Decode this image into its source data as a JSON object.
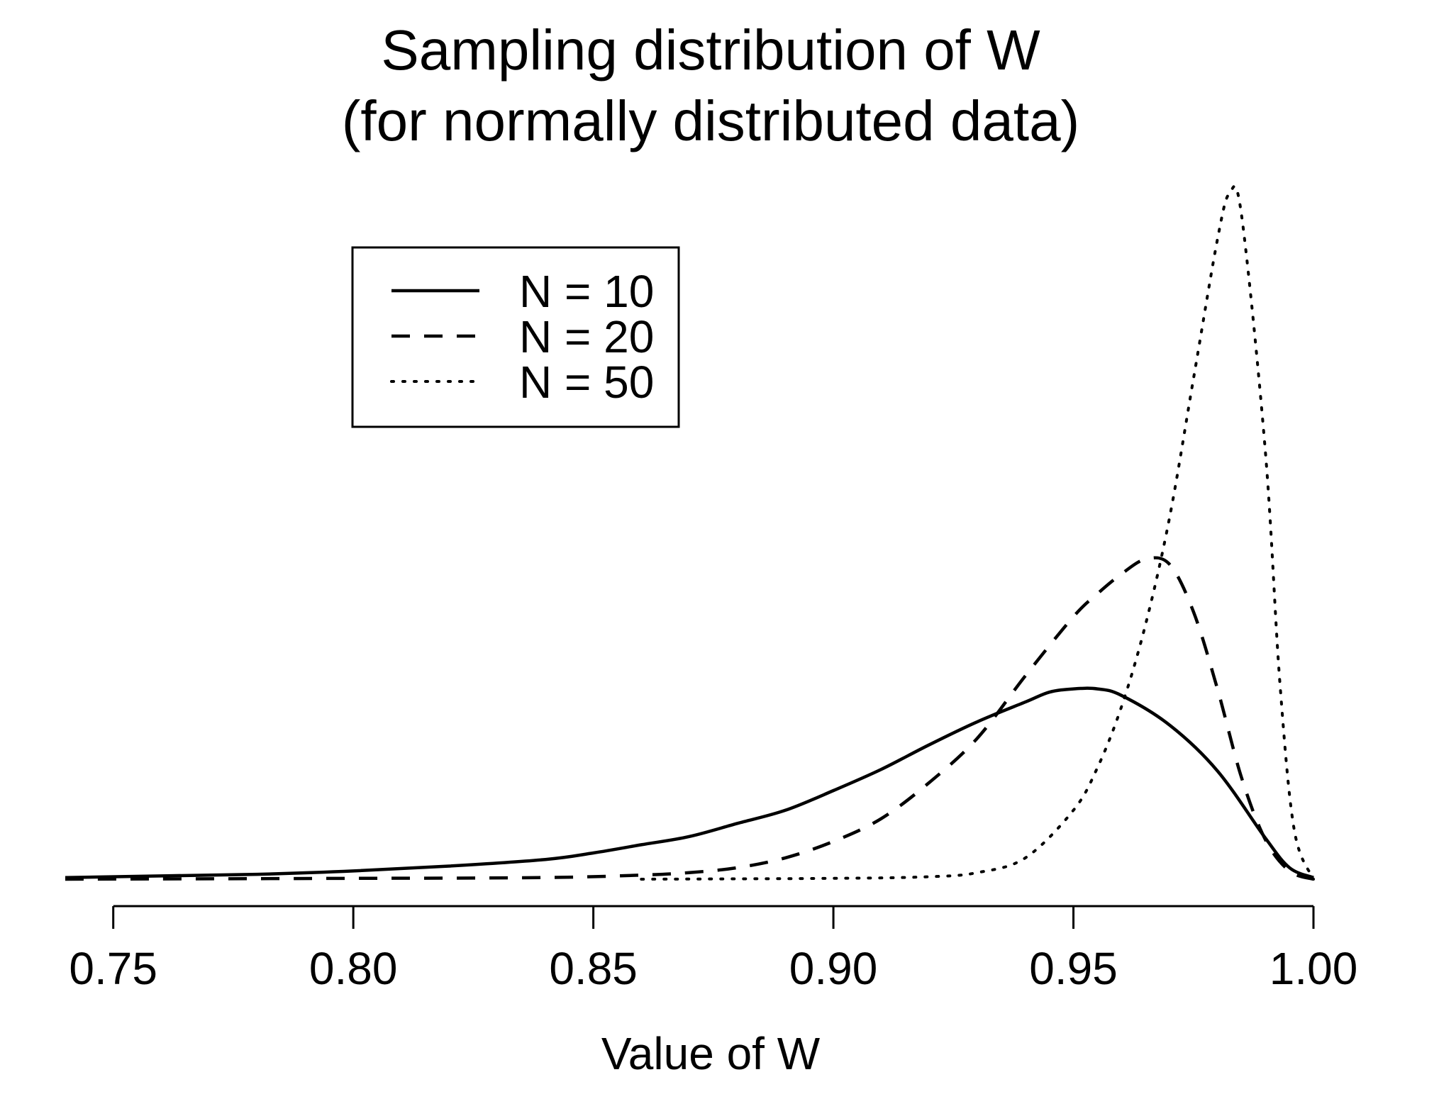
{
  "chart_data": {
    "type": "line",
    "title": "Sampling distribution of W",
    "subtitle": "(for normally distributed data)",
    "xlabel": "Value of W",
    "ylabel": "",
    "xlim": [
      0.74,
      1.0
    ],
    "ylim": [
      0,
      43
    ],
    "x_axis": {
      "ticks": [
        0.75,
        0.8,
        0.85,
        0.9,
        0.95,
        1.0
      ],
      "tick_labels": [
        "0.75",
        "0.80",
        "0.85",
        "0.90",
        "0.95",
        "1.00"
      ]
    },
    "y_axis": {
      "shown": false
    },
    "grid": false,
    "legend": {
      "position": "top-left"
    },
    "series": [
      {
        "name": "N = 10",
        "line_style": "solid",
        "points": [
          [
            0.74,
            0.1
          ],
          [
            0.76,
            0.2
          ],
          [
            0.78,
            0.3
          ],
          [
            0.8,
            0.5
          ],
          [
            0.82,
            0.8
          ],
          [
            0.84,
            1.2
          ],
          [
            0.85,
            1.6
          ],
          [
            0.86,
            2.1
          ],
          [
            0.87,
            2.6
          ],
          [
            0.88,
            3.4
          ],
          [
            0.89,
            4.2
          ],
          [
            0.9,
            5.4
          ],
          [
            0.91,
            6.7
          ],
          [
            0.92,
            8.2
          ],
          [
            0.93,
            9.6
          ],
          [
            0.94,
            10.8
          ],
          [
            0.945,
            11.4
          ],
          [
            0.95,
            11.6
          ],
          [
            0.955,
            11.6
          ],
          [
            0.96,
            11.2
          ],
          [
            0.97,
            9.4
          ],
          [
            0.98,
            6.6
          ],
          [
            0.99,
            2.5
          ],
          [
            0.995,
            0.7
          ],
          [
            1.0,
            0.1
          ]
        ]
      },
      {
        "name": "N = 20",
        "line_style": "dashed",
        "points": [
          [
            0.74,
            0.0
          ],
          [
            0.8,
            0.05
          ],
          [
            0.84,
            0.1
          ],
          [
            0.86,
            0.25
          ],
          [
            0.87,
            0.4
          ],
          [
            0.88,
            0.7
          ],
          [
            0.89,
            1.3
          ],
          [
            0.9,
            2.3
          ],
          [
            0.91,
            3.7
          ],
          [
            0.92,
            5.9
          ],
          [
            0.93,
            8.6
          ],
          [
            0.94,
            12.4
          ],
          [
            0.95,
            16.0
          ],
          [
            0.955,
            17.4
          ],
          [
            0.96,
            18.6
          ],
          [
            0.965,
            19.5
          ],
          [
            0.97,
            19.2
          ],
          [
            0.975,
            16.3
          ],
          [
            0.98,
            11.6
          ],
          [
            0.985,
            6.2
          ],
          [
            0.99,
            2.4
          ],
          [
            0.995,
            0.5
          ],
          [
            1.0,
            0.0
          ]
        ]
      },
      {
        "name": "N = 50",
        "line_style": "dotted",
        "points": [
          [
            0.86,
            0.0
          ],
          [
            0.9,
            0.05
          ],
          [
            0.92,
            0.15
          ],
          [
            0.93,
            0.4
          ],
          [
            0.94,
            1.3
          ],
          [
            0.95,
            4.2
          ],
          [
            0.955,
            6.8
          ],
          [
            0.96,
            10.5
          ],
          [
            0.965,
            15.5
          ],
          [
            0.97,
            22.0
          ],
          [
            0.975,
            30.5
          ],
          [
            0.98,
            39.0
          ],
          [
            0.9825,
            41.8
          ],
          [
            0.985,
            40.5
          ],
          [
            0.99,
            26.0
          ],
          [
            0.993,
            12.0
          ],
          [
            0.996,
            3.0
          ],
          [
            1.0,
            0.0
          ]
        ]
      }
    ]
  }
}
